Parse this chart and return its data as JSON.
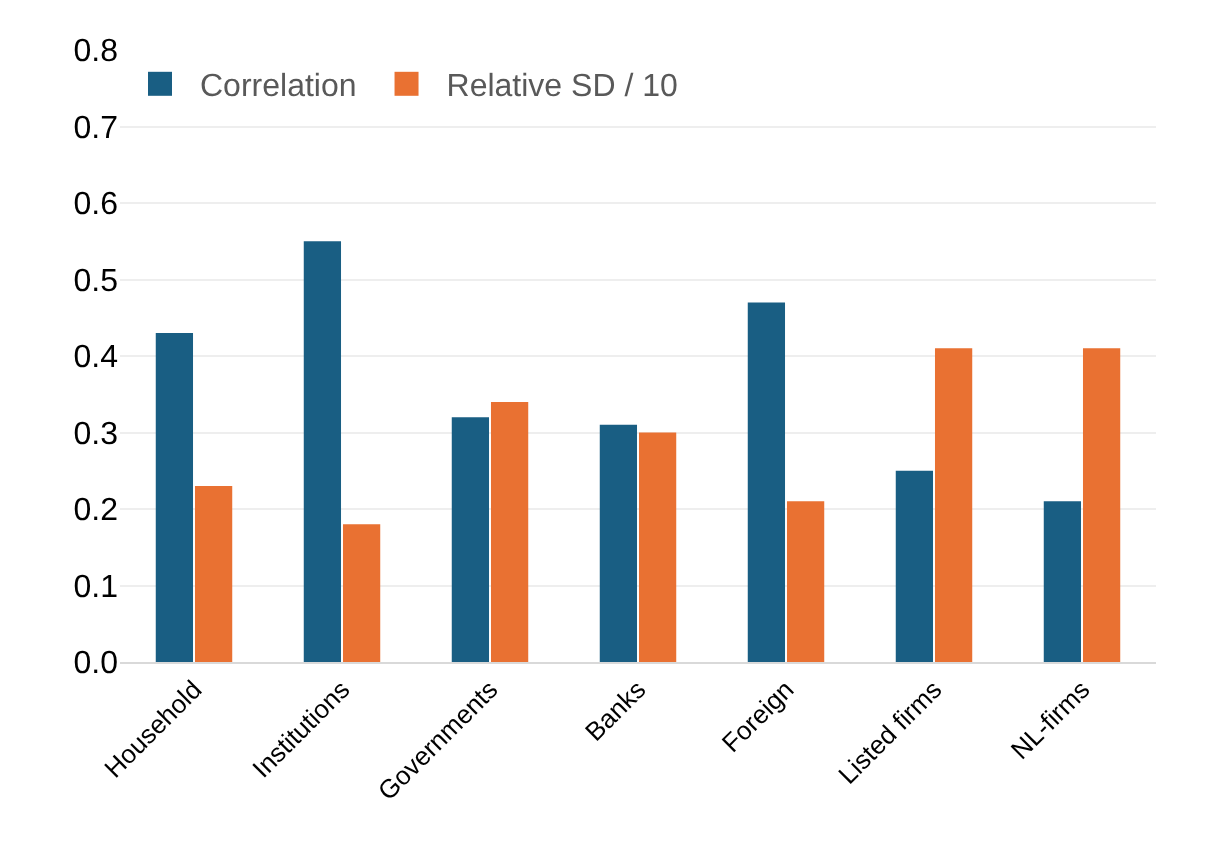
{
  "chart_data": {
    "type": "bar",
    "categories": [
      "Household",
      "Institutions",
      "Governments",
      "Banks",
      "Foreign",
      "Listed firms",
      "NL-firms"
    ],
    "series": [
      {
        "name": "Correlation",
        "color": "#195e83",
        "values": [
          0.43,
          0.55,
          0.32,
          0.31,
          0.47,
          0.25,
          0.21
        ]
      },
      {
        "name": "Relative SD / 10",
        "color": "#e97132",
        "values": [
          0.23,
          0.18,
          0.34,
          0.3,
          0.21,
          0.41,
          0.41
        ]
      }
    ],
    "ylim": [
      0,
      0.8
    ],
    "yticks": [
      {
        "value": 0,
        "label": "0.0"
      },
      0.1,
      0.2,
      0.3,
      0.4,
      0.5,
      0.6,
      0.7,
      0.8
    ],
    "grid": "y",
    "legend": "top left"
  }
}
